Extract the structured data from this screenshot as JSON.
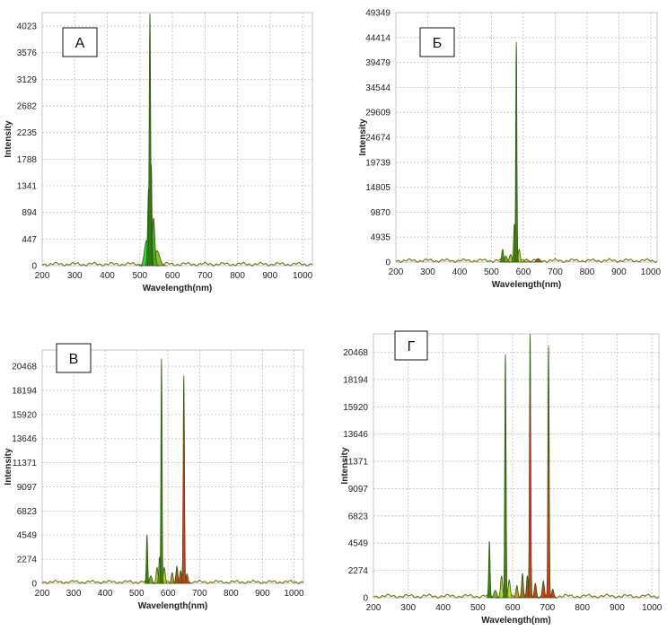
{
  "chart_data": [
    {
      "type": "area",
      "panel_letter": "A",
      "xlabel": "Wavelength(nm)",
      "ylabel": "Intensity",
      "xlim": [
        200,
        1030
      ],
      "ylim": [
        0,
        4250
      ],
      "xticks": [
        "200",
        "300",
        "400",
        "500",
        "600",
        "700",
        "800",
        "900",
        "1000"
      ],
      "yticks": [
        "0",
        "447",
        "894",
        "1341",
        "1788",
        "2235",
        "2682",
        "3129",
        "3576",
        "4023"
      ],
      "grid": true,
      "peaks": [
        {
          "wl": 520,
          "height": 420,
          "width": 6,
          "color": "#33cc33"
        },
        {
          "wl": 527,
          "height": 1300,
          "width": 3,
          "color": "#22a022"
        },
        {
          "wl": 531,
          "height": 4230,
          "width": 2.2,
          "color": "#2f7a10"
        },
        {
          "wl": 535,
          "height": 1700,
          "width": 2,
          "color": "#2f7a10"
        },
        {
          "wl": 542,
          "height": 800,
          "width": 4,
          "color": "#44aa22"
        },
        {
          "wl": 553,
          "height": 250,
          "width": 8,
          "color": "#88bb22"
        }
      ]
    },
    {
      "type": "area",
      "panel_letter": "Б",
      "xlabel": "Wavelength(nm)",
      "ylabel": "Intensity",
      "xlim": [
        200,
        1020
      ],
      "ylim": [
        0,
        49349
      ],
      "xticks": [
        "200",
        "300",
        "400",
        "500",
        "600",
        "700",
        "800",
        "900",
        "1000"
      ],
      "yticks": [
        "0",
        "4935",
        "9870",
        "14805",
        "19739",
        "24674",
        "29609",
        "34544",
        "39479",
        "44414",
        "49349"
      ],
      "grid": true,
      "peaks": [
        {
          "wl": 535,
          "height": 2500,
          "width": 3,
          "color": "#3a8a1a"
        },
        {
          "wl": 545,
          "height": 1200,
          "width": 4,
          "color": "#7aaa22"
        },
        {
          "wl": 560,
          "height": 1500,
          "width": 4,
          "color": "#aabb22"
        },
        {
          "wl": 572,
          "height": 7500,
          "width": 2.5,
          "color": "#5a8a10"
        },
        {
          "wl": 578,
          "height": 43500,
          "width": 1.8,
          "color": "#3b7a0c"
        },
        {
          "wl": 587,
          "height": 2500,
          "width": 3,
          "color": "#cccc22"
        },
        {
          "wl": 610,
          "height": 600,
          "width": 5,
          "color": "#ddbb22"
        },
        {
          "wl": 645,
          "height": 700,
          "width": 4,
          "color": "#cc3322"
        }
      ]
    },
    {
      "type": "area",
      "panel_letter": "В",
      "xlabel": "Wavelength(nm)",
      "ylabel": "Intensity",
      "xlim": [
        200,
        1030
      ],
      "ylim": [
        0,
        22000
      ],
      "xticks": [
        "200",
        "300",
        "400",
        "500",
        "600",
        "700",
        "800",
        "900",
        "1000"
      ],
      "yticks": [
        "0",
        "2274",
        "4549",
        "6823",
        "9097",
        "11371",
        "13646",
        "15920",
        "18194",
        "20468"
      ],
      "grid": true,
      "peaks": [
        {
          "wl": 533,
          "height": 4600,
          "width": 2,
          "color": "#2f7a10"
        },
        {
          "wl": 545,
          "height": 700,
          "width": 4,
          "color": "#66aa22"
        },
        {
          "wl": 565,
          "height": 1500,
          "width": 3,
          "color": "#bbcc22"
        },
        {
          "wl": 573,
          "height": 2500,
          "width": 2.5,
          "color": "#8a9a10"
        },
        {
          "wl": 579,
          "height": 21200,
          "width": 1.8,
          "color": "#3b7a0c"
        },
        {
          "wl": 588,
          "height": 1500,
          "width": 3,
          "color": "#cccc22"
        },
        {
          "wl": 613,
          "height": 1000,
          "width": 3,
          "color": "#cc8822"
        },
        {
          "wl": 628,
          "height": 1600,
          "width": 3,
          "color": "#aa4411"
        },
        {
          "wl": 640,
          "height": 1200,
          "width": 3,
          "color": "#cc3311"
        },
        {
          "wl": 650,
          "height": 19600,
          "width": 2,
          "color": "#dd2a10"
        },
        {
          "wl": 660,
          "height": 900,
          "width": 3,
          "color": "#dd2a10"
        }
      ]
    },
    {
      "type": "area",
      "panel_letter": "Г",
      "xlabel": "Wavelength(nm)",
      "ylabel": "Intensity",
      "xlim": [
        200,
        1020
      ],
      "ylim": [
        0,
        22000
      ],
      "xticks": [
        "200",
        "300",
        "400",
        "500",
        "600",
        "700",
        "800",
        "900",
        "1000"
      ],
      "yticks": [
        "0",
        "2274",
        "4549",
        "6823",
        "9097",
        "11371",
        "13646",
        "15920",
        "18194",
        "20468"
      ],
      "grid": true,
      "peaks": [
        {
          "wl": 533,
          "height": 4700,
          "width": 2,
          "color": "#2f7a10"
        },
        {
          "wl": 550,
          "height": 600,
          "width": 4,
          "color": "#77aa22"
        },
        {
          "wl": 568,
          "height": 1800,
          "width": 3,
          "color": "#bbcc22"
        },
        {
          "wl": 579,
          "height": 20300,
          "width": 1.8,
          "color": "#3b7a0c"
        },
        {
          "wl": 590,
          "height": 1500,
          "width": 3,
          "color": "#cccc22"
        },
        {
          "wl": 612,
          "height": 1000,
          "width": 3,
          "color": "#cc8822"
        },
        {
          "wl": 628,
          "height": 2000,
          "width": 2.5,
          "color": "#9a6a11"
        },
        {
          "wl": 642,
          "height": 1800,
          "width": 2.5,
          "color": "#cc3311"
        },
        {
          "wl": 650,
          "height": 22000,
          "width": 1.8,
          "color": "#dd2a10"
        },
        {
          "wl": 665,
          "height": 1200,
          "width": 3,
          "color": "#cc3311"
        },
        {
          "wl": 688,
          "height": 1400,
          "width": 3,
          "color": "#dd2a10"
        },
        {
          "wl": 703,
          "height": 21000,
          "width": 1.8,
          "color": "#dd2a10"
        },
        {
          "wl": 715,
          "height": 700,
          "width": 3,
          "color": "#dd2a10"
        }
      ]
    }
  ]
}
